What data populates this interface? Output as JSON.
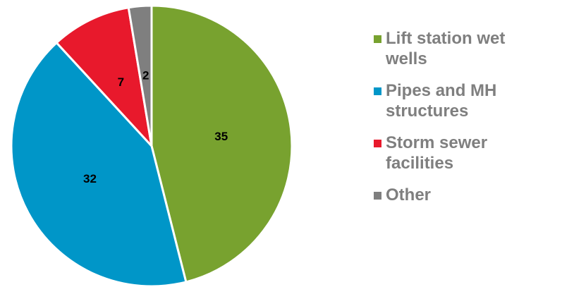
{
  "chart_data": {
    "type": "pie",
    "categories": [
      "Lift station wet wells",
      "Pipes and MH structures",
      "Storm sewer facilities",
      "Other"
    ],
    "values": [
      35,
      32,
      7,
      2
    ],
    "colors": [
      "#78a22f",
      "#0096c8",
      "#e8192c",
      "#7f7f7f"
    ],
    "legend": "right"
  }
}
